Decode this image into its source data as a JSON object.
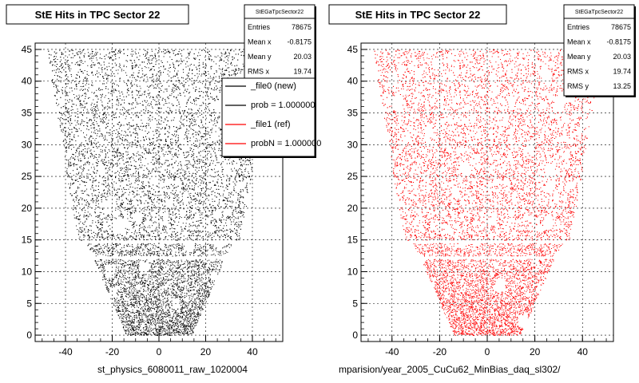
{
  "chart_data": [
    {
      "type": "scatter",
      "title": "StE Hits in TPC Sector 22",
      "xlim": [
        -53,
        53
      ],
      "ylim": [
        -1,
        46
      ],
      "xticks": [
        -40,
        -20,
        0,
        20,
        40
      ],
      "yticks": [
        0,
        5,
        10,
        15,
        20,
        25,
        30,
        35,
        40,
        45
      ],
      "grid": true,
      "color": "#000000",
      "bottom_label": "st_physics_6080011_raw_1020004",
      "stats": {
        "name": "StEGaTpcSector22",
        "rows": [
          {
            "label": "Entries",
            "value": "78675"
          },
          {
            "label": "Mean x",
            "value": "-0.8175"
          },
          {
            "label": "Mean y",
            "value": "20.03"
          },
          {
            "label": "RMS x",
            "value": "19.74"
          }
        ]
      },
      "legend": {
        "position": "top-right",
        "entries": [
          {
            "label": "_file0 (new)",
            "color": "#000000"
          },
          {
            "label": "prob = 1.000000",
            "color": "#000000"
          },
          {
            "label": "_file1 (ref)",
            "color": "#ff0000"
          },
          {
            "label": "probN = 1.000000",
            "color": "#ff0000"
          }
        ]
      },
      "shape": {
        "bands": [
          {
            "y": [
              0,
              12
            ],
            "x_half_bottom": 14,
            "x_half_top": 28
          },
          {
            "y": [
              12.5,
              14.5
            ],
            "x_half_bottom": 28,
            "x_half_top": 32
          },
          {
            "y": [
              15,
              45
            ],
            "x_half_bottom": 35,
            "x_half_top": 48
          }
        ]
      }
    },
    {
      "type": "scatter",
      "title": "StE Hits in TPC Sector 22",
      "xlim": [
        -53,
        53
      ],
      "ylim": [
        -1,
        46
      ],
      "xticks": [
        -40,
        -20,
        0,
        20,
        40
      ],
      "yticks": [
        0,
        5,
        10,
        15,
        20,
        25,
        30,
        35,
        40,
        45
      ],
      "grid": true,
      "color": "#ff0000",
      "bottom_label": "mparision/year_2005_CuCu62_MinBias_daq_sl302/",
      "stats": {
        "name": "StEGaTpcSector22",
        "rows": [
          {
            "label": "Entries",
            "value": "78675"
          },
          {
            "label": "Mean x",
            "value": "-0.8175"
          },
          {
            "label": "Mean y",
            "value": "20.03"
          },
          {
            "label": "RMS x",
            "value": "19.74"
          },
          {
            "label": "RMS y",
            "value": "13.25"
          }
        ]
      },
      "shape": {
        "bands": [
          {
            "y": [
              0,
              12
            ],
            "x_half_bottom": 14,
            "x_half_top": 28
          },
          {
            "y": [
              12.5,
              14.5
            ],
            "x_half_bottom": 28,
            "x_half_top": 32
          },
          {
            "y": [
              15,
              45
            ],
            "x_half_bottom": 35,
            "x_half_top": 48
          }
        ]
      }
    }
  ]
}
